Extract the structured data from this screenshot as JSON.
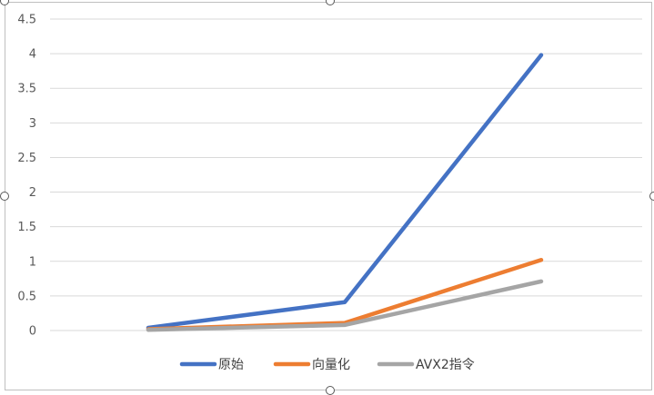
{
  "chart_data": {
    "type": "line",
    "categories": [
      "",
      "",
      ""
    ],
    "y_ticks": [
      "0",
      "0.5",
      "1",
      "1.5",
      "2",
      "2.5",
      "3",
      "3.5",
      "4",
      "4.5"
    ],
    "ylim": [
      0,
      4.5
    ],
    "grid": true,
    "legend_position": "bottom",
    "series": [
      {
        "name": "原始",
        "values": [
          0.04,
          0.41,
          3.98
        ],
        "color": "#4472C4"
      },
      {
        "name": "向量化",
        "values": [
          0.02,
          0.11,
          1.02
        ],
        "color": "#ED7D31"
      },
      {
        "name": "AVX2指令",
        "values": [
          0.01,
          0.08,
          0.71
        ],
        "color": "#A5A5A5"
      }
    ]
  }
}
